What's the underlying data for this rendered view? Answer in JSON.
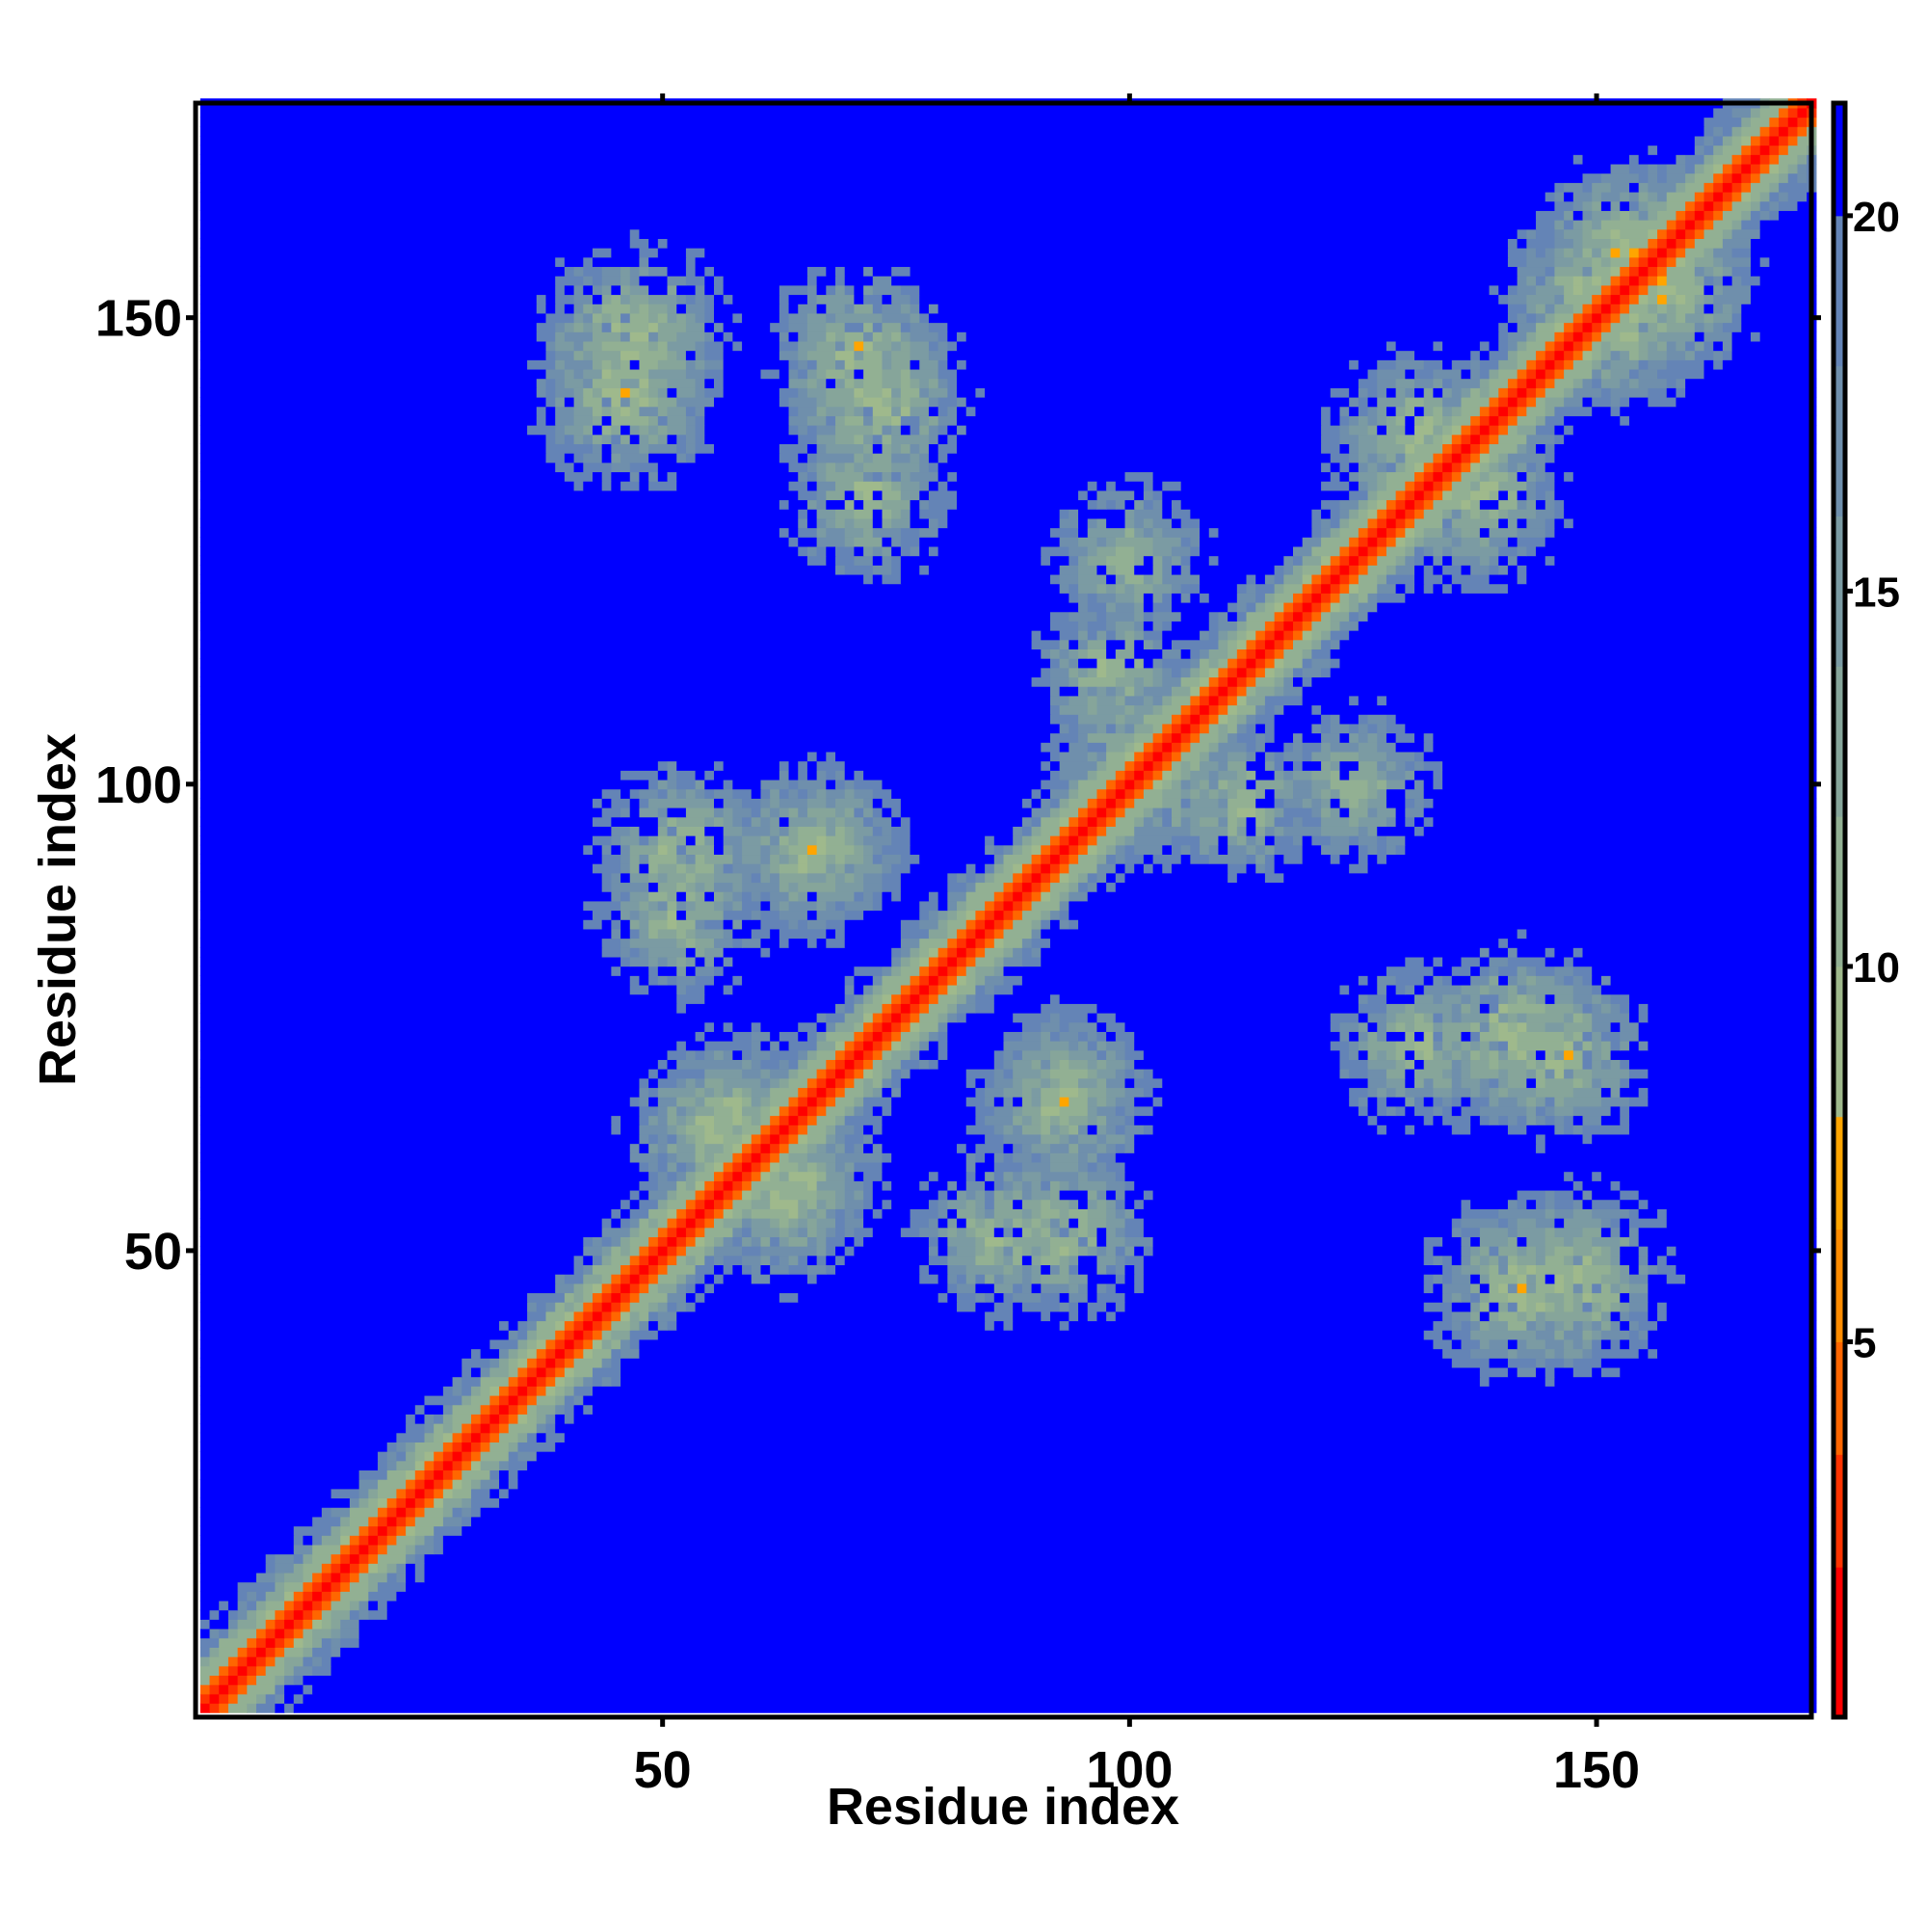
{
  "chart_data": {
    "type": "heatmap",
    "title": "",
    "xlabel": "Residue index",
    "ylabel": "Residue index",
    "n_residues": 173,
    "xlim": [
      1,
      173
    ],
    "ylim": [
      1,
      173
    ],
    "x_ticks": [
      50,
      100,
      150
    ],
    "y_ticks": [
      50,
      100,
      150
    ],
    "x_tick_labels": [
      "50",
      "100",
      "150"
    ],
    "y_tick_labels": [
      "50",
      "100",
      "150"
    ],
    "colorbar": {
      "range": [
        0,
        21.5
      ],
      "ticks": [
        5,
        10,
        15,
        20
      ],
      "tick_labels": [
        "5",
        "10",
        "15",
        "20"
      ],
      "colors": [
        {
          "max": 2.0,
          "color": "#ff0000"
        },
        {
          "max": 3.5,
          "color": "#ff3300"
        },
        {
          "max": 5.0,
          "color": "#ff6600"
        },
        {
          "max": 6.5,
          "color": "#ff8c00"
        },
        {
          "max": 8.0,
          "color": "#ffa500"
        },
        {
          "max": 10.0,
          "color": "#9fb98c"
        },
        {
          "max": 12.0,
          "color": "#92b093"
        },
        {
          "max": 14.0,
          "color": "#86a59a"
        },
        {
          "max": 16.0,
          "color": "#7b9ba3"
        },
        {
          "max": 18.0,
          "color": "#6f8fac"
        },
        {
          "max": 20.0,
          "color": "#6484b6"
        },
        {
          "max": 21.5,
          "color": "#0000ff"
        }
      ]
    },
    "diagonal_value": 1.0,
    "contact_clusters": [
      {
        "x": 47,
        "y": 148,
        "value": 6.0
      },
      {
        "x": 71,
        "y": 146,
        "value": 6.5
      },
      {
        "x": 52,
        "y": 93,
        "value": 7.0
      },
      {
        "x": 66,
        "y": 93,
        "value": 7.0
      },
      {
        "x": 58,
        "y": 65,
        "value": 7.5
      },
      {
        "x": 63,
        "y": 55,
        "value": 7.5
      },
      {
        "x": 86,
        "y": 52,
        "value": 7.5
      },
      {
        "x": 93,
        "y": 67,
        "value": 7.5
      },
      {
        "x": 100,
        "y": 103,
        "value": 8.0
      },
      {
        "x": 112,
        "y": 98,
        "value": 8.0
      },
      {
        "x": 124,
        "y": 100,
        "value": 8.0
      },
      {
        "x": 131,
        "y": 72,
        "value": 7.5
      },
      {
        "x": 141,
        "y": 73,
        "value": 6.0
      },
      {
        "x": 142,
        "y": 46,
        "value": 6.0
      },
      {
        "x": 152,
        "y": 150,
        "value": 6.0
      },
      {
        "x": 157,
        "y": 153,
        "value": 6.0
      },
      {
        "x": 137,
        "y": 131,
        "value": 6.5
      }
    ]
  }
}
